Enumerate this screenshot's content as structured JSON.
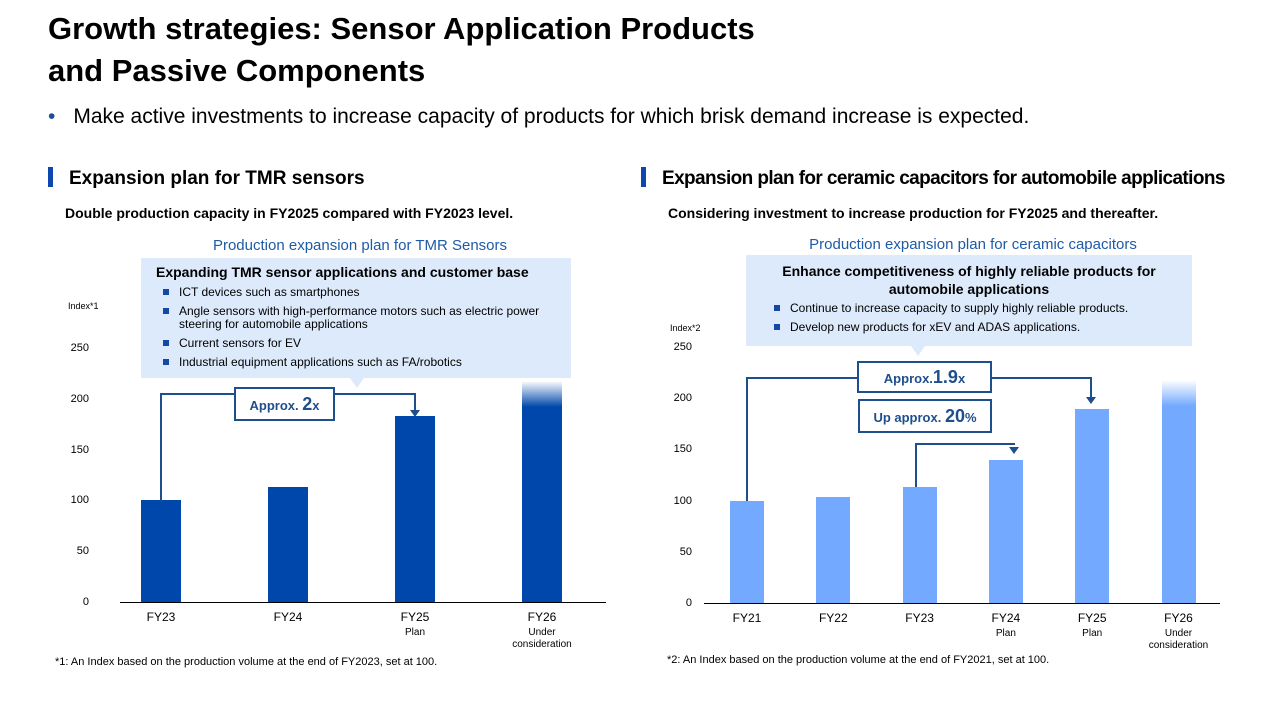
{
  "page": {
    "title_line1": "Growth strategies: Sensor Application Products",
    "title_line2": "and Passive Components",
    "bullet": "Make active investments to increase capacity of products for which brisk demand increase is expected."
  },
  "left": {
    "section_title": "Expansion plan for TMR sensors",
    "subtitle": "Double production capacity in FY2025 compared with FY2023 level.",
    "callout_title": "Expanding TMR sensor applications and customer base",
    "callout_items": [
      "ICT devices such as smartphones",
      "Angle sensors with high-performance motors such as electric power steering for automobile applications",
      "Current sensors for EV",
      "Industrial equipment applications such as FA/robotics"
    ],
    "annotation_prefix": "Approx.",
    "annotation_value": "2",
    "annotation_suffix": "x",
    "footnote": "*1: An Index based on the production volume at the end of FY2023, set at 100."
  },
  "right": {
    "section_title": "Expansion plan for ceramic capacitors for automobile applications",
    "subtitle": "Considering investment to increase production for FY2025 and thereafter.",
    "callout_title": "Enhance competitiveness of highly reliable products for automobile applications",
    "callout_items": [
      "Continue to increase capacity to supply highly reliable products.",
      "Develop new products for xEV and ADAS applications."
    ],
    "annotation1_prefix": "Approx.",
    "annotation1_value": "1.9",
    "annotation1_suffix": "x",
    "annotation2_prefix": "Up approx.",
    "annotation2_value": "20",
    "annotation2_suffix": "%",
    "footnote": "*2: An Index based on the production volume at the end of FY2021, set at 100."
  },
  "colors": {
    "dark_blue": "#0047ab",
    "light_blue": "#73a9ff",
    "annotation": "#1f4e8c",
    "callout_bg": "#ddeafb"
  },
  "chart_data": [
    {
      "type": "bar",
      "title": "Production expansion plan for TMR Sensors",
      "ylabel": "Index*1",
      "ylim": [
        0,
        250
      ],
      "yticks": [
        "0",
        "50",
        "100",
        "150",
        "200",
        "250"
      ],
      "categories": [
        "FY23",
        "FY24",
        "FY25",
        "FY26"
      ],
      "sublabels": [
        "",
        "",
        "Plan",
        "Under consideration"
      ],
      "values": [
        100,
        113,
        183,
        218
      ],
      "faded_top": [
        false,
        false,
        false,
        true
      ]
    },
    {
      "type": "bar",
      "title": "Production expansion plan for ceramic capacitors",
      "ylabel": "Index*2",
      "ylim": [
        0,
        250
      ],
      "yticks": [
        "0",
        "50",
        "100",
        "150",
        "200",
        "250"
      ],
      "categories": [
        "FY21",
        "FY22",
        "FY23",
        "FY24",
        "FY25",
        "FY26"
      ],
      "sublabels": [
        "",
        "",
        "",
        "Plan",
        "Plan",
        "Under consideration"
      ],
      "values": [
        100,
        104,
        113,
        140,
        189,
        218
      ],
      "faded_top": [
        false,
        false,
        false,
        false,
        false,
        true
      ]
    }
  ]
}
